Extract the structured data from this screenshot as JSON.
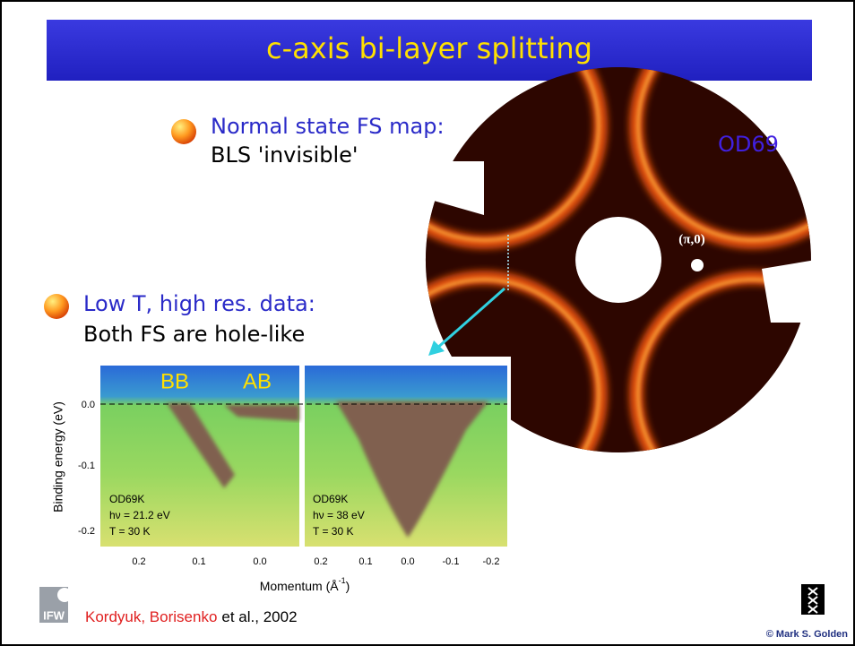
{
  "title": "c-axis bi-layer splitting",
  "bullets": [
    {
      "heading": "Normal state FS map:",
      "text": "BLS 'invisible'"
    },
    {
      "heading": "Low T, high res. data:",
      "text": "Both FS are hole-like"
    }
  ],
  "fs_map": {
    "label": "OD69",
    "point_label": "(π,0)"
  },
  "arpes": {
    "y_axis_label": "Binding energy (eV)",
    "y_ticks": [
      "0.0",
      "-0.1",
      "-0.2"
    ],
    "x_axis_label": "Momentum (Å",
    "x_axis_label_sup": "-1",
    "x_axis_label_end": ")",
    "panels": [
      {
        "labels": [
          "BB",
          "AB"
        ],
        "x_ticks": [
          "0.2",
          "0.1",
          "0.0"
        ],
        "info": [
          "OD69K",
          "hν = 21.2 eV",
          "T = 30 K"
        ]
      },
      {
        "x_ticks": [
          "0.2",
          "0.1",
          "0.0",
          "-0.1",
          "-0.2"
        ],
        "info": [
          "OD69K",
          "hν = 38 eV",
          "T = 30 K"
        ]
      }
    ]
  },
  "footer": {
    "authors": "Kordyuk, Borisenko",
    "citation_rest": "et al., 2002",
    "logo_left": "IFW",
    "copyright": "© Mark S. Golden"
  }
}
